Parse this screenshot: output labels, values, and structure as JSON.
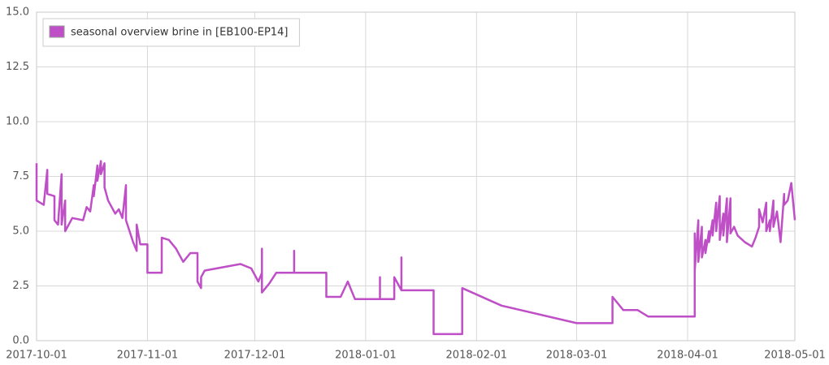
{
  "chart_data": {
    "type": "line",
    "series": [
      {
        "name": "seasonal overview brine in [EB100-EP14]",
        "color": "#bf4fc6",
        "values": [
          8.1,
          6.4,
          6.2,
          7.8,
          6.7,
          6.6,
          5.5,
          5.3,
          7.6,
          5.3,
          6.4,
          5.0,
          5.3,
          5.6,
          5.5,
          6.1,
          5.9,
          7.1,
          6.6,
          8.0,
          7.3,
          8.2,
          7.6,
          8.1,
          7.0,
          6.4,
          6.1,
          5.8,
          6.0,
          5.6,
          7.1,
          5.5,
          4.5,
          4.1,
          5.3,
          4.4,
          4.4,
          3.1,
          3.1,
          4.7,
          4.6,
          4.2,
          3.6,
          4.0,
          4.0,
          2.7,
          2.4,
          2.9,
          3.2,
          3.5,
          3.3,
          2.7,
          3.1,
          4.2,
          2.2,
          2.6,
          3.1,
          3.1,
          4.1,
          3.1,
          3.1,
          2.0,
          2.0,
          2.7,
          1.9,
          1.9,
          2.9,
          1.9,
          1.9,
          2.9,
          2.3,
          3.8,
          2.3,
          2.3,
          0.3,
          0.3,
          2.4,
          1.6,
          0.8,
          0.8,
          2.0,
          1.4,
          1.4,
          1.1,
          1.1,
          4.9,
          3.2,
          5.5,
          3.6,
          5.2,
          3.8,
          4.6,
          4.0,
          5.0,
          4.5,
          5.5,
          4.8,
          6.3,
          5.0,
          6.6,
          4.6,
          5.8,
          4.8,
          6.5,
          4.5,
          6.5,
          4.9,
          5.2,
          4.8,
          4.5,
          4.3,
          4.7,
          5.2,
          6.0,
          5.4,
          6.3,
          5.0,
          5.5,
          5.0,
          6.4,
          5.2,
          5.9,
          4.5,
          6.7,
          6.2,
          6.4,
          7.2,
          5.5
        ]
      }
    ],
    "x": [
      "2017-10-01",
      "2017-10-01",
      "2017-10-03",
      "2017-10-04",
      "2017-10-04",
      "2017-10-06",
      "2017-10-06",
      "2017-10-07",
      "2017-10-08",
      "2017-10-08",
      "2017-10-09",
      "2017-10-09",
      "2017-10-10",
      "2017-10-11",
      "2017-10-14",
      "2017-10-15",
      "2017-10-16",
      "2017-10-17",
      "2017-10-17",
      "2017-10-18",
      "2017-10-18",
      "2017-10-19",
      "2017-10-19",
      "2017-10-20",
      "2017-10-20",
      "2017-10-21",
      "2017-10-22",
      "2017-10-23",
      "2017-10-24",
      "2017-10-25",
      "2017-10-26",
      "2017-10-26",
      "2017-10-28",
      "2017-10-29",
      "2017-10-29",
      "2017-10-30",
      "2017-11-01",
      "2017-11-01",
      "2017-11-05",
      "2017-11-05",
      "2017-11-07",
      "2017-11-09",
      "2017-11-11",
      "2017-11-13",
      "2017-11-15",
      "2017-11-15",
      "2017-11-16",
      "2017-11-16",
      "2017-11-17",
      "2017-11-27",
      "2017-11-30",
      "2017-12-02",
      "2017-12-03",
      "2017-12-03",
      "2017-12-03",
      "2017-12-05",
      "2017-12-07",
      "2017-12-12",
      "2017-12-12",
      "2017-12-12",
      "2017-12-21",
      "2017-12-21",
      "2017-12-25",
      "2017-12-27",
      "2017-12-29",
      "2018-01-05",
      "2018-01-05",
      "2018-01-05",
      "2018-01-09",
      "2018-01-09",
      "2018-01-11",
      "2018-01-11",
      "2018-01-11",
      "2018-01-20",
      "2018-01-20",
      "2018-01-28",
      "2018-01-28",
      "2018-02-08",
      "2018-03-01",
      "2018-03-11",
      "2018-03-11",
      "2018-03-14",
      "2018-03-18",
      "2018-03-21",
      "2018-04-03",
      "2018-04-03",
      "2018-04-03",
      "2018-04-04",
      "2018-04-04",
      "2018-04-05",
      "2018-04-05",
      "2018-04-06",
      "2018-04-06",
      "2018-04-07",
      "2018-04-07",
      "2018-04-08",
      "2018-04-08",
      "2018-04-09",
      "2018-04-09",
      "2018-04-10",
      "2018-04-10",
      "2018-04-11",
      "2018-04-11",
      "2018-04-12",
      "2018-04-12",
      "2018-04-13",
      "2018-04-13",
      "2018-04-14",
      "2018-04-15",
      "2018-04-17",
      "2018-04-19",
      "2018-04-20",
      "2018-04-21",
      "2018-04-21",
      "2018-04-22",
      "2018-04-23",
      "2018-04-23",
      "2018-04-24",
      "2018-04-24",
      "2018-04-25",
      "2018-04-25",
      "2018-04-26",
      "2018-04-27",
      "2018-04-28",
      "2018-04-28",
      "2018-04-29",
      "2018-04-30",
      "2018-05-01"
    ],
    "xlim": [
      "2017-10-01",
      "2018-05-01"
    ],
    "xticks": [
      "2017-10-01",
      "2017-11-01",
      "2017-12-01",
      "2018-01-01",
      "2018-02-01",
      "2018-03-01",
      "2018-04-01",
      "2018-05-01"
    ],
    "ylim": [
      0,
      15
    ],
    "yticks": [
      {
        "value": 0,
        "label": "0.0"
      },
      {
        "value": 2.5,
        "label": "2.5"
      },
      {
        "value": 5,
        "label": "5.0"
      },
      {
        "value": 7.5,
        "label": "7.5"
      },
      {
        "value": 10,
        "label": "10.0"
      },
      {
        "value": 12.5,
        "label": "12.5"
      },
      {
        "value": 15,
        "label": "15.0"
      }
    ],
    "grid": true,
    "legend": "upper left"
  }
}
